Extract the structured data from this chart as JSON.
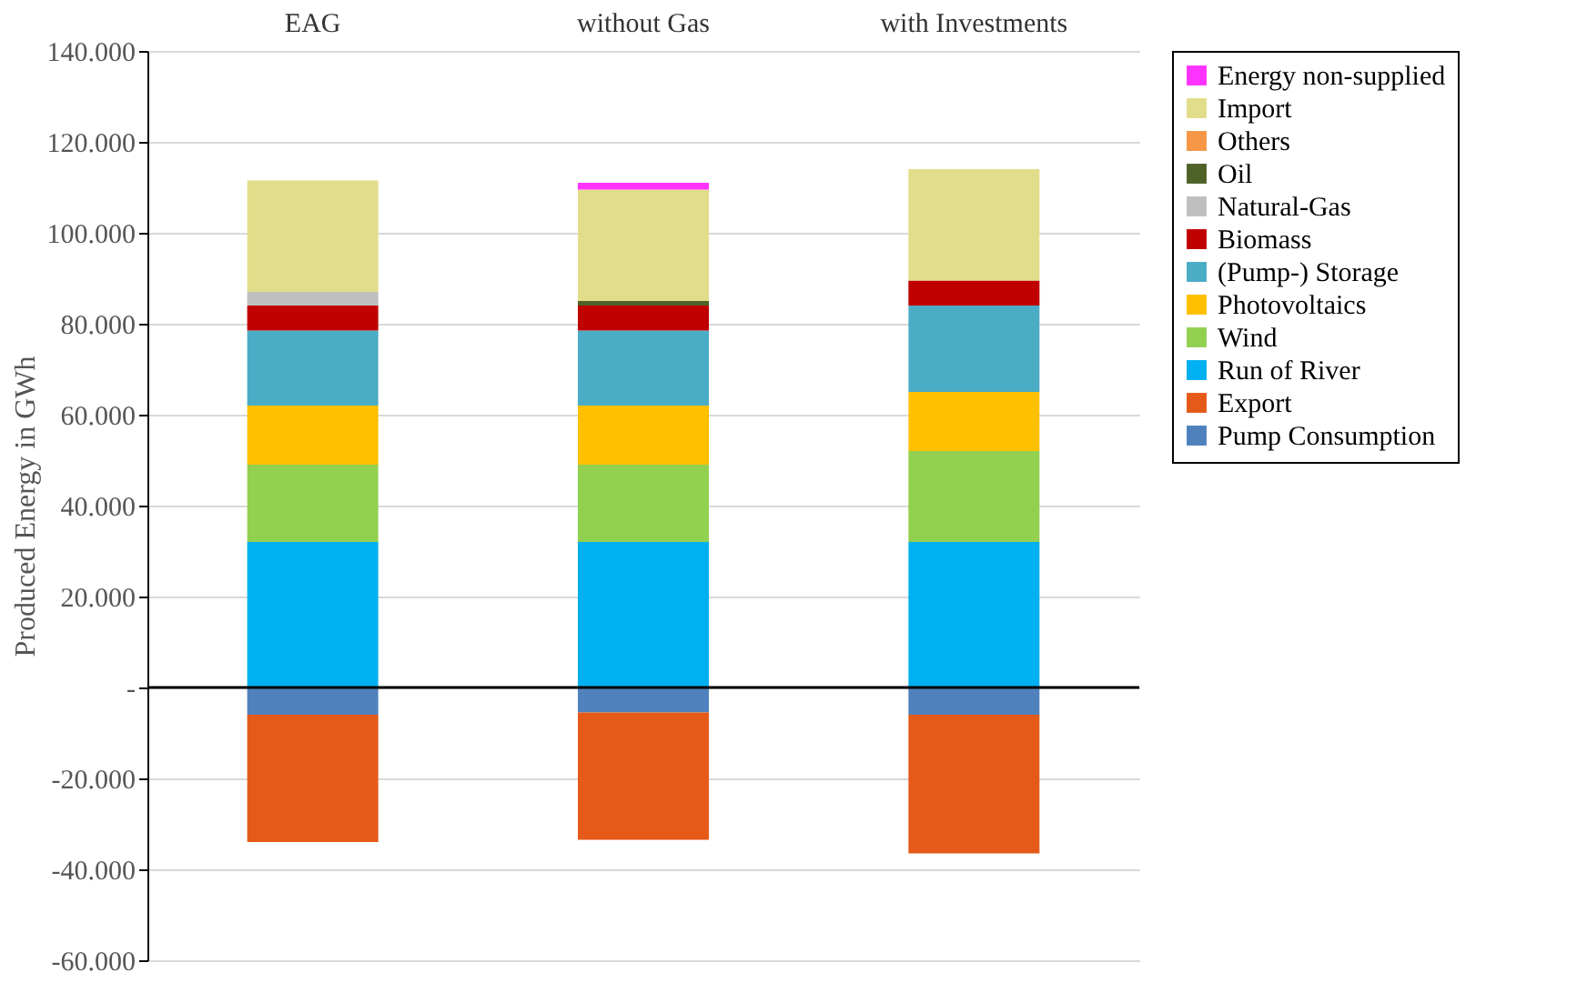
{
  "chart_data": {
    "type": "bar",
    "stacked": true,
    "ylabel": "Produced Energy in GWh",
    "categories": [
      "EAG",
      "without Gas",
      "with Investments"
    ],
    "series": [
      {
        "name": "Pump Consumption",
        "color": "#4f81bd",
        "values": [
          -6000,
          -5500,
          -6000
        ]
      },
      {
        "name": "Export",
        "color": "#e65a19",
        "values": [
          -28000,
          -28000,
          -30500
        ]
      },
      {
        "name": "Run of River",
        "color": "#00b0f0",
        "values": [
          32000,
          32000,
          32000
        ]
      },
      {
        "name": "Wind",
        "color": "#92d050",
        "values": [
          17000,
          17000,
          20000
        ]
      },
      {
        "name": "Photovoltaics",
        "color": "#ffc000",
        "values": [
          13000,
          13000,
          13000
        ]
      },
      {
        "name": "(Pump-) Storage",
        "color": "#4bacc6",
        "values": [
          16500,
          16500,
          19000
        ]
      },
      {
        "name": "Biomass",
        "color": "#c00000",
        "values": [
          5500,
          5500,
          5500
        ]
      },
      {
        "name": "Natural-Gas",
        "color": "#bfbfbf",
        "values": [
          3000,
          null,
          null
        ]
      },
      {
        "name": "Oil",
        "color": "#4f6228",
        "values": [
          null,
          1000,
          null
        ]
      },
      {
        "name": "Others",
        "color": "#f79646",
        "values": [
          null,
          null,
          null
        ]
      },
      {
        "name": "Import",
        "color": "#e2dd8a",
        "values": [
          24500,
          24500,
          24500
        ]
      },
      {
        "name": "Energy non-supplied",
        "color": "#ff33ff",
        "values": [
          null,
          1500,
          null
        ]
      }
    ],
    "ylim": [
      -60000,
      140000
    ],
    "yticks": [
      {
        "value": -60000,
        "label": "-60.000"
      },
      {
        "value": -40000,
        "label": "-40.000"
      },
      {
        "value": -20000,
        "label": "-20.000"
      },
      {
        "value": 0,
        "label": "-"
      },
      {
        "value": 20000,
        "label": "20.000"
      },
      {
        "value": 40000,
        "label": "40.000"
      },
      {
        "value": 60000,
        "label": "60.000"
      },
      {
        "value": 80000,
        "label": "80.000"
      },
      {
        "value": 100000,
        "label": "100.000"
      },
      {
        "value": 120000,
        "label": "120.000"
      },
      {
        "value": 140000,
        "label": "140.000"
      }
    ],
    "grid": "y",
    "legend": "right"
  }
}
